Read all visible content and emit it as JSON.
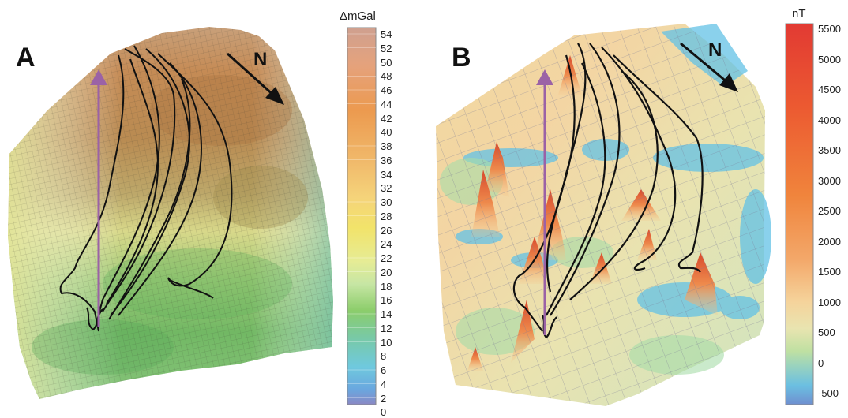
{
  "panel_a": {
    "letter": "A",
    "north": "N",
    "scale": {
      "unit": "ΔmGal",
      "ticks": [
        "54",
        "52",
        "50",
        "48",
        "46",
        "44",
        "42",
        "40",
        "38",
        "36",
        "34",
        "32",
        "30",
        "28",
        "26",
        "24",
        "22",
        "20",
        "18",
        "16",
        "14",
        "12",
        "10",
        "8",
        "6",
        "4",
        "2",
        "0"
      ]
    }
  },
  "panel_b": {
    "letter": "B",
    "north": "N",
    "scale": {
      "unit": "nT",
      "ticks": [
        "5500",
        "5000",
        "4500",
        "4000",
        "3500",
        "3000",
        "2500",
        "2000",
        "1500",
        "1000",
        "500",
        "0",
        "-500"
      ]
    }
  },
  "colors": {
    "track": "#111111",
    "arrow": "#9b62a6"
  }
}
